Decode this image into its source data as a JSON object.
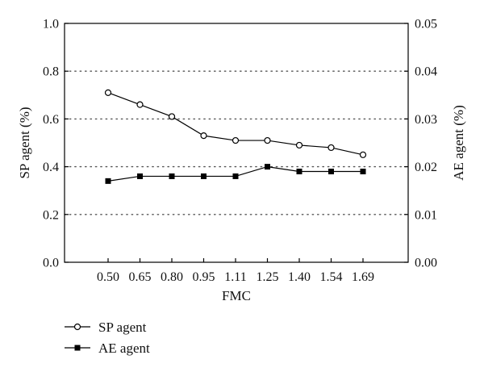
{
  "chart_data": {
    "type": "line",
    "categories": [
      "0.50",
      "0.65",
      "0.80",
      "0.95",
      "1.11",
      "1.25",
      "1.40",
      "1.54",
      "1.69"
    ],
    "xlabel": "FMC",
    "ylabel": "SP agent (%)",
    "y2label": "AE agent (%)",
    "ylim": [
      0,
      1.0
    ],
    "y2lim": [
      0,
      0.05
    ],
    "yticks": [
      "0.0",
      "0.2",
      "0.4",
      "0.6",
      "0.8",
      "1.0"
    ],
    "y2ticks": [
      "0.00",
      "0.01",
      "0.02",
      "0.03",
      "0.04",
      "0.05"
    ],
    "grid": "horizontal-dotted",
    "legend_position": "bottom-left",
    "series": [
      {
        "name": "SP agent",
        "axis": "left",
        "marker": "open-circle",
        "values": [
          0.71,
          0.66,
          0.61,
          0.53,
          0.51,
          0.51,
          0.49,
          0.48,
          0.45
        ]
      },
      {
        "name": "AE agent",
        "axis": "right",
        "marker": "filled-square",
        "values": [
          0.017,
          0.018,
          0.018,
          0.018,
          0.018,
          0.02,
          0.019,
          0.019,
          0.019
        ]
      }
    ]
  }
}
